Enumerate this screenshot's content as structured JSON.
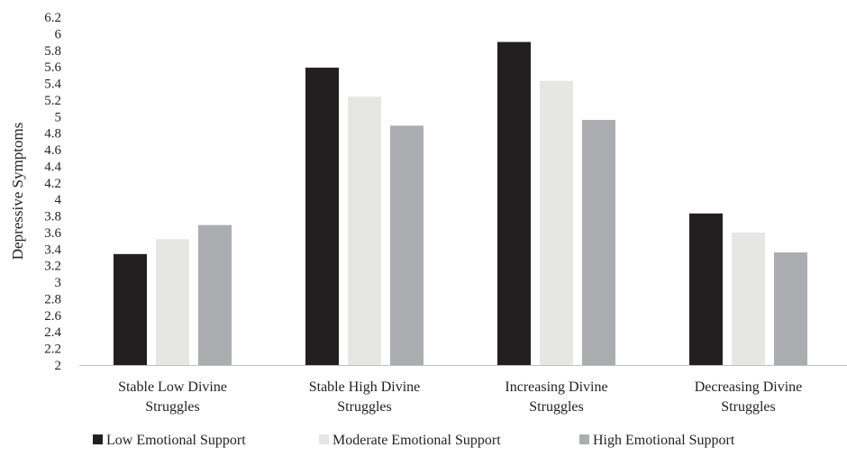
{
  "chart_data": {
    "type": "bar",
    "title": "",
    "xlabel": "",
    "ylabel": "Depressive Symptoms",
    "ylim": [
      2,
      6.2
    ],
    "ytick_step": 0.2,
    "yticks": [
      "2",
      "2.2",
      "2.4",
      "2.6",
      "2.8",
      "3",
      "3.2",
      "3.4",
      "3.6",
      "3.8",
      "4",
      "4.2",
      "4.4",
      "4.6",
      "4.8",
      "5",
      "5.2",
      "5.4",
      "5.6",
      "5.8",
      "6",
      "6.2"
    ],
    "grid": false,
    "legend_position": "bottom",
    "categories": [
      [
        "Stable Low Divine",
        "Struggles"
      ],
      [
        "Stable High Divine",
        "Struggles"
      ],
      [
        "Increasing Divine",
        "Struggles"
      ],
      [
        "Decreasing Divine",
        "Struggles"
      ]
    ],
    "series": [
      {
        "name": "Low Emotional Support",
        "color": "#231f20",
        "values": [
          3.34,
          5.59,
          5.9,
          3.83
        ]
      },
      {
        "name": "Moderate Emotional Support",
        "color": "#e6e6e5",
        "values": [
          3.52,
          5.24,
          5.43,
          3.6
        ]
      },
      {
        "name": "High Emotional Support",
        "color": "#acadb0",
        "values": [
          3.69,
          4.89,
          4.96,
          3.36
        ]
      }
    ]
  }
}
